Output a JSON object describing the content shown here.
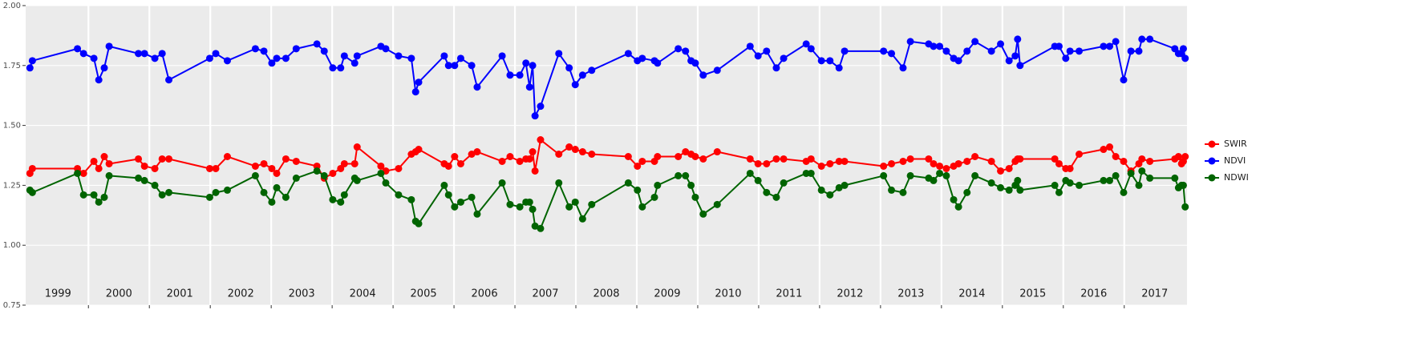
{
  "chart_data": {
    "type": "line",
    "x": [
      1999.04,
      1999.08,
      1999.82,
      1999.92,
      2000.09,
      2000.17,
      2000.26,
      2000.34,
      2000.82,
      2000.92,
      2001.09,
      2001.21,
      2001.32,
      2001.99,
      2002.09,
      2002.28,
      2002.74,
      2002.88,
      2003.01,
      2003.09,
      2003.24,
      2003.41,
      2003.75,
      2003.87,
      2004.01,
      2004.14,
      2004.2,
      2004.37,
      2004.41,
      2004.8,
      2004.88,
      2005.09,
      2005.3,
      2005.37,
      2005.42,
      2005.84,
      2005.91,
      2006.01,
      2006.11,
      2006.29,
      2006.38,
      2006.79,
      2006.92,
      2007.08,
      2007.18,
      2007.24,
      2007.29,
      2007.33,
      2007.42,
      2007.72,
      2007.89,
      2007.99,
      2008.11,
      2008.26,
      2008.86,
      2009.01,
      2009.09,
      2009.29,
      2009.34,
      2009.68,
      2009.8,
      2009.89,
      2009.96,
      2010.09,
      2010.32,
      2010.86,
      2010.99,
      2011.13,
      2011.29,
      2011.41,
      2011.78,
      2011.86,
      2012.03,
      2012.17,
      2012.32,
      2012.41,
      2013.05,
      2013.18,
      2013.37,
      2013.49,
      2013.79,
      2013.87,
      2013.97,
      2014.08,
      2014.2,
      2014.28,
      2014.42,
      2014.55,
      2014.82,
      2014.97,
      2015.11,
      2015.21,
      2015.25,
      2015.29,
      2015.86,
      2015.93,
      2016.04,
      2016.11,
      2016.26,
      2016.66,
      2016.76,
      2016.86,
      2016.99,
      2017.11,
      2017.24,
      2017.29,
      2017.42,
      2017.83,
      2017.89,
      2017.94,
      2017.97,
      2018.0
    ],
    "series": [
      {
        "name": "SWIR",
        "color": "#ff0000",
        "values": [
          1.3,
          1.32,
          1.32,
          1.3,
          1.35,
          1.32,
          1.37,
          1.34,
          1.36,
          1.33,
          1.32,
          1.36,
          1.36,
          1.32,
          1.32,
          1.37,
          1.33,
          1.34,
          1.32,
          1.3,
          1.36,
          1.35,
          1.33,
          1.28,
          1.3,
          1.32,
          1.34,
          1.34,
          1.41,
          1.33,
          1.31,
          1.32,
          1.38,
          1.39,
          1.4,
          1.34,
          1.33,
          1.37,
          1.34,
          1.38,
          1.39,
          1.35,
          1.37,
          1.35,
          1.36,
          1.36,
          1.39,
          1.31,
          1.44,
          1.38,
          1.41,
          1.4,
          1.39,
          1.38,
          1.37,
          1.33,
          1.35,
          1.35,
          1.37,
          1.37,
          1.39,
          1.38,
          1.37,
          1.36,
          1.39,
          1.36,
          1.34,
          1.34,
          1.36,
          1.36,
          1.35,
          1.36,
          1.33,
          1.34,
          1.35,
          1.35,
          1.33,
          1.34,
          1.35,
          1.36,
          1.36,
          1.34,
          1.33,
          1.32,
          1.33,
          1.34,
          1.35,
          1.37,
          1.35,
          1.31,
          1.32,
          1.35,
          1.36,
          1.36,
          1.36,
          1.34,
          1.32,
          1.32,
          1.38,
          1.4,
          1.41,
          1.37,
          1.35,
          1.31,
          1.34,
          1.36,
          1.35,
          1.36,
          1.37,
          1.34,
          1.35,
          1.37
        ]
      },
      {
        "name": "NDVI",
        "color": "#0000ff",
        "values": [
          1.74,
          1.77,
          1.82,
          1.8,
          1.78,
          1.69,
          1.74,
          1.83,
          1.8,
          1.8,
          1.78,
          1.8,
          1.69,
          1.78,
          1.8,
          1.77,
          1.82,
          1.81,
          1.76,
          1.78,
          1.78,
          1.82,
          1.84,
          1.81,
          1.74,
          1.74,
          1.79,
          1.76,
          1.79,
          1.83,
          1.82,
          1.79,
          1.78,
          1.64,
          1.68,
          1.79,
          1.75,
          1.75,
          1.78,
          1.75,
          1.66,
          1.79,
          1.71,
          1.71,
          1.76,
          1.66,
          1.75,
          1.54,
          1.58,
          1.8,
          1.74,
          1.67,
          1.71,
          1.73,
          1.8,
          1.77,
          1.78,
          1.77,
          1.76,
          1.82,
          1.81,
          1.77,
          1.76,
          1.71,
          1.73,
          1.83,
          1.79,
          1.81,
          1.74,
          1.78,
          1.84,
          1.82,
          1.77,
          1.77,
          1.74,
          1.81,
          1.81,
          1.8,
          1.74,
          1.85,
          1.84,
          1.83,
          1.83,
          1.81,
          1.78,
          1.77,
          1.81,
          1.85,
          1.81,
          1.84,
          1.77,
          1.79,
          1.86,
          1.75,
          1.83,
          1.83,
          1.78,
          1.81,
          1.81,
          1.83,
          1.83,
          1.85,
          1.69,
          1.81,
          1.81,
          1.86,
          1.86,
          1.82,
          1.8,
          1.8,
          1.82,
          1.78
        ]
      },
      {
        "name": "NDWI",
        "color": "#006400",
        "values": [
          1.23,
          1.22,
          1.3,
          1.21,
          1.21,
          1.18,
          1.2,
          1.29,
          1.28,
          1.27,
          1.25,
          1.21,
          1.22,
          1.2,
          1.22,
          1.23,
          1.29,
          1.22,
          1.18,
          1.24,
          1.2,
          1.28,
          1.31,
          1.29,
          1.19,
          1.18,
          1.21,
          1.28,
          1.27,
          1.3,
          1.26,
          1.21,
          1.19,
          1.1,
          1.09,
          1.25,
          1.21,
          1.16,
          1.18,
          1.2,
          1.13,
          1.26,
          1.17,
          1.16,
          1.18,
          1.18,
          1.15,
          1.08,
          1.07,
          1.26,
          1.16,
          1.18,
          1.11,
          1.17,
          1.26,
          1.23,
          1.16,
          1.2,
          1.25,
          1.29,
          1.29,
          1.25,
          1.2,
          1.13,
          1.17,
          1.3,
          1.27,
          1.22,
          1.2,
          1.26,
          1.3,
          1.3,
          1.23,
          1.21,
          1.24,
          1.25,
          1.29,
          1.23,
          1.22,
          1.29,
          1.28,
          1.27,
          1.3,
          1.29,
          1.19,
          1.16,
          1.22,
          1.29,
          1.26,
          1.24,
          1.23,
          1.25,
          1.27,
          1.23,
          1.25,
          1.22,
          1.27,
          1.26,
          1.25,
          1.27,
          1.27,
          1.29,
          1.22,
          1.3,
          1.25,
          1.31,
          1.28,
          1.28,
          1.24,
          1.25,
          1.25,
          1.16
        ]
      }
    ],
    "xlim": [
      1998.97,
      2018.03
    ],
    "xticks": [
      {
        "value": 1999.5,
        "label": "1999"
      },
      {
        "value": 2000.5,
        "label": "2000"
      },
      {
        "value": 2001.5,
        "label": "2001"
      },
      {
        "value": 2002.5,
        "label": "2002"
      },
      {
        "value": 2003.5,
        "label": "2003"
      },
      {
        "value": 2004.5,
        "label": "2004"
      },
      {
        "value": 2005.5,
        "label": "2005"
      },
      {
        "value": 2006.5,
        "label": "2006"
      },
      {
        "value": 2007.5,
        "label": "2007"
      },
      {
        "value": 2008.5,
        "label": "2008"
      },
      {
        "value": 2009.5,
        "label": "2009"
      },
      {
        "value": 2010.5,
        "label": "2010"
      },
      {
        "value": 2011.5,
        "label": "2011"
      },
      {
        "value": 2012.5,
        "label": "2012"
      },
      {
        "value": 2013.5,
        "label": "2013"
      },
      {
        "value": 2014.5,
        "label": "2014"
      },
      {
        "value": 2015.5,
        "label": "2015"
      },
      {
        "value": 2016.5,
        "label": "2016"
      },
      {
        "value": 2017.5,
        "label": "2017"
      }
    ],
    "year_boundaries": [
      2000,
      2001,
      2002,
      2003,
      2004,
      2005,
      2006,
      2007,
      2008,
      2009,
      2010,
      2011,
      2012,
      2013,
      2014,
      2015,
      2016,
      2017
    ],
    "ylim": [
      0.75,
      2.0
    ],
    "yticks": [
      0.75,
      {
        "value": 1,
        "label": "1.00"
      },
      1.25,
      {
        "value": 1.5,
        "label": "1.50"
      },
      1.75,
      {
        "value": 2,
        "label": "2.00"
      }
    ],
    "grid": true,
    "legend": "right"
  }
}
